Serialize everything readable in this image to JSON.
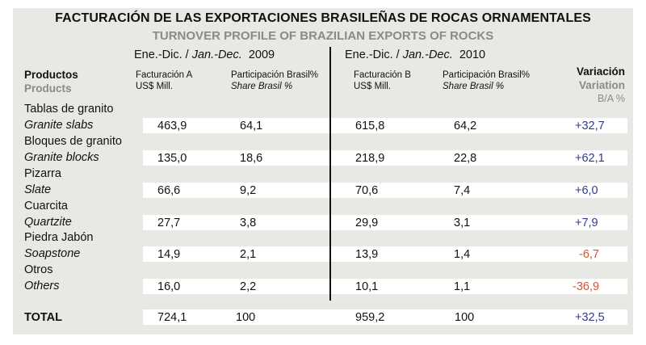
{
  "title": "FACTURACIÓN DE LAS EXPORTACIONES BRASILEÑAS DE ROCAS ORNAMENTALES",
  "subtitle": "TURNOVER PROFILE OF BRAZILIAN EXPORTS OF ROCKS",
  "periods": [
    {
      "es": "Ene.-Dic. / ",
      "en": "Jan.-Dec.",
      "year": "2009"
    },
    {
      "es": "Ene.-Dic. / ",
      "en": "Jan.-Dec.",
      "year": "2010"
    }
  ],
  "headers": {
    "productos": "Productos",
    "products": "Products",
    "fact_a_1": "Facturación A",
    "fact_a_2": "US$ Mill.",
    "part_a_1": "Participación Brasil%",
    "part_a_2": "Share Brasil %",
    "fact_b_1": "Facturación B",
    "fact_b_2": "US$ Mill.",
    "part_b_1": "Participación Brasil%",
    "part_b_2": "Share Brasil %",
    "variacion": "Variación",
    "variation": "Variation",
    "ratio": "B/A %"
  },
  "rows": [
    {
      "es": "Tablas de granito",
      "en": "Granite slabs",
      "fact_a": "463,9",
      "share_a": "64,1",
      "fact_b": "615,8",
      "share_b": "64,2",
      "variation": "+32,7"
    },
    {
      "es": "Bloques de granito",
      "en": "Granite blocks",
      "fact_a": "135,0",
      "share_a": "18,6",
      "fact_b": "218,9",
      "share_b": "22,8",
      "variation": "+62,1"
    },
    {
      "es": "Pizarra",
      "en": "Slate",
      "fact_a": "66,6",
      "share_a": "9,2",
      "fact_b": "70,6",
      "share_b": "7,4",
      "variation": "+6,0"
    },
    {
      "es": "Cuarcita",
      "en": "Quartzite",
      "fact_a": "27,7",
      "share_a": "3,8",
      "fact_b": "29,9",
      "share_b": "3,1",
      "variation": "+7,9"
    },
    {
      "es": "Piedra Jabón",
      "en": "Soapstone",
      "fact_a": "14,9",
      "share_a": "2,1",
      "fact_b": "13,9",
      "share_b": "1,4",
      "variation": "-6,7"
    },
    {
      "es": "Otros",
      "en": "Others",
      "fact_a": "16,0",
      "share_a": "2,2",
      "fact_b": "10,1",
      "share_b": "1,1",
      "variation": "-36,9"
    }
  ],
  "total": {
    "label": "TOTAL",
    "fact_a": "724,1",
    "share_a": "100",
    "fact_b": "959,2",
    "share_b": "100",
    "variation": "+32,5"
  },
  "colors": {
    "panel": "#e8e8e4",
    "positive": "#2f3b8f",
    "negative": "#d4552b",
    "subtitle": "#8a8a8a"
  }
}
